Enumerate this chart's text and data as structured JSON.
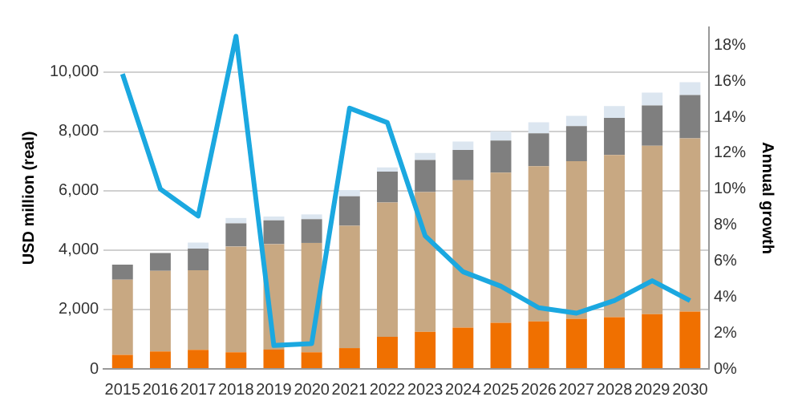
{
  "chart_data": {
    "type": "bar",
    "stacked": true,
    "grid": "y",
    "legend": false,
    "marker": "none",
    "line_style": "solid",
    "ylabel": "USD million (real)",
    "y2label": "Annual growth",
    "categories": [
      "2015",
      "2016",
      "2017",
      "2018",
      "2019",
      "2020",
      "2021",
      "2022",
      "2023",
      "2024",
      "2025",
      "2026",
      "2027",
      "2028",
      "2029",
      "2030"
    ],
    "ylim": [
      0,
      11500
    ],
    "yticks": [
      0,
      {
        "value": 2000,
        "label": "2,000"
      },
      {
        "value": 4000,
        "label": "4,000"
      },
      {
        "value": 6000,
        "label": "6,000"
      },
      {
        "value": 8000,
        "label": "8,000"
      },
      {
        "value": 10000,
        "label": "10,000"
      }
    ],
    "y2lim": [
      0,
      19
    ],
    "y2ticks": [
      {
        "value": 0,
        "label": "0%"
      },
      {
        "value": 2,
        "label": "2%"
      },
      {
        "value": 4,
        "label": "4%"
      },
      {
        "value": 6,
        "label": "6%"
      },
      {
        "value": 8,
        "label": "8%"
      },
      {
        "value": 10,
        "label": "10%"
      },
      {
        "value": 12,
        "label": "12%"
      },
      {
        "value": 14,
        "label": "14%"
      },
      {
        "value": 16,
        "label": "16%"
      },
      {
        "value": 18,
        "label": "18%"
      }
    ],
    "series": [
      {
        "color": "#f07000",
        "values": [
          470,
          590,
          640,
          560,
          650,
          560,
          700,
          1080,
          1250,
          1390,
          1550,
          1600,
          1690,
          1740,
          1840,
          1930
        ]
      },
      {
        "color": "#c8a882",
        "values": [
          2530,
          2710,
          2680,
          3560,
          3550,
          3680,
          4120,
          4520,
          4700,
          4960,
          5060,
          5220,
          5300,
          5460,
          5670,
          5830
        ]
      },
      {
        "color": "#7f7f7f",
        "values": [
          510,
          600,
          730,
          780,
          800,
          800,
          990,
          1040,
          1080,
          1020,
          1080,
          1110,
          1180,
          1250,
          1360,
          1460
        ]
      },
      {
        "color": "#dce6f0",
        "values": [
          0,
          null,
          200,
          180,
          130,
          160,
          210,
          140,
          240,
          280,
          310,
          370,
          350,
          400,
          430,
          430
        ]
      },
      {
        "type": "line",
        "axis": "y2",
        "color": "#1ba8e0",
        "values": [
          16.4,
          10.0,
          8.5,
          18.5,
          1.3,
          1.4,
          14.5,
          13.7,
          7.4,
          5.4,
          4.6,
          3.4,
          3.1,
          3.8,
          4.9,
          3.8
        ]
      }
    ]
  }
}
